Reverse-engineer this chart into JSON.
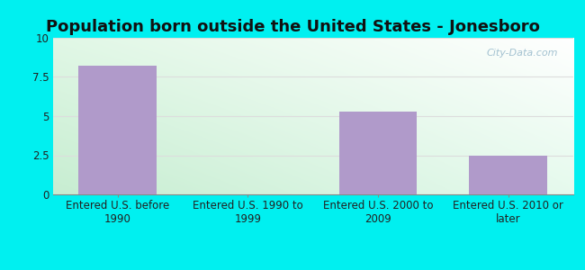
{
  "title": "Population born outside the United States - Jonesboro",
  "categories": [
    "Entered U.S. before\n1990",
    "Entered U.S. 1990 to\n1999",
    "Entered U.S. 2000 to\n2009",
    "Entered U.S. 2010 or\nlater"
  ],
  "values": [
    8.2,
    0.0,
    5.3,
    2.5
  ],
  "bar_color": "#b09aca",
  "bar_edge_color": "#b09aca",
  "ylim": [
    0,
    10
  ],
  "yticks": [
    0,
    2.5,
    5,
    7.5,
    10
  ],
  "ytick_labels": [
    "0",
    "2.5",
    "5",
    "7.5",
    "10"
  ],
  "outer_bg_color": "#00f0f0",
  "plot_bg_topleft": "#d8f0e0",
  "plot_bg_topright": "#ffffff",
  "plot_bg_bottomleft": "#c8ecd0",
  "plot_bg_bottomright": "#e8f8f0",
  "grid_color": "#dddddd",
  "title_fontsize": 13,
  "tick_fontsize": 8.5,
  "watermark_text": "City-Data.com",
  "watermark_color": "#99bbcc"
}
